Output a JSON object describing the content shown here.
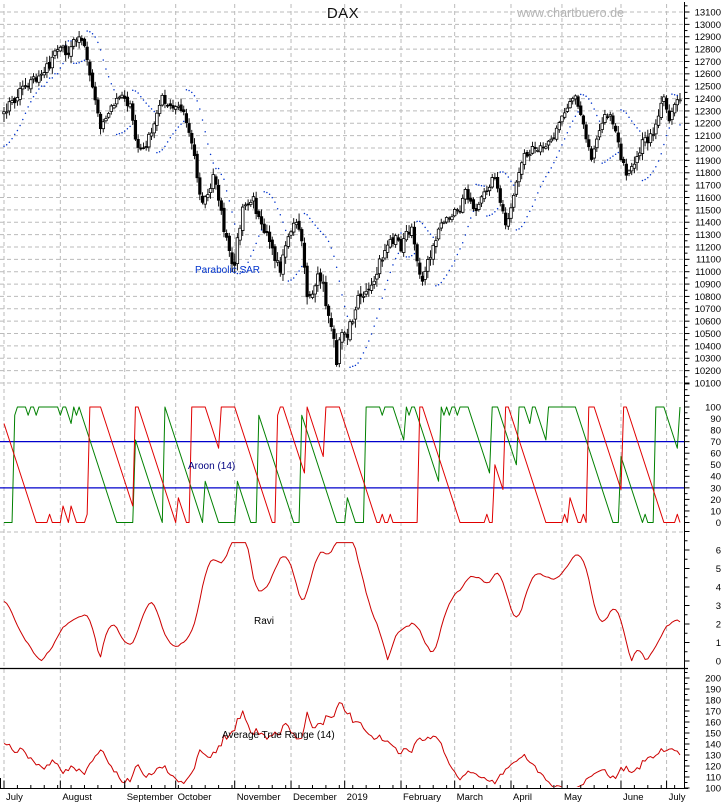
{
  "header": {
    "title": "DAX",
    "watermark": "www.chartbuero.de"
  },
  "chart_data": {
    "type": "candlestick",
    "title": "DAX",
    "legend_position": "none",
    "grid": "on",
    "x_axis": {
      "month_labels": [
        "July",
        "August",
        "September",
        "October",
        "November",
        "December",
        "2019",
        "February",
        "March",
        "April",
        "May",
        "June",
        "July"
      ],
      "month_start_days": [
        0,
        21,
        45,
        64,
        86,
        107,
        127,
        148,
        168,
        189,
        208,
        230,
        247
      ],
      "minor_tick_every_days": 5
    },
    "panels": [
      {
        "name": "price",
        "indicator_label": "Parabolic SAR",
        "y_min": 10100,
        "y_max": 13100,
        "tick_step": 100,
        "minor_step": 50
      },
      {
        "name": "aroon",
        "label": "Aroon (14)",
        "levels": [
          70,
          30
        ],
        "y_min": 0,
        "y_max": 100,
        "tick_step": 10,
        "minor_step": 5
      },
      {
        "name": "ravi",
        "label": "Ravi",
        "y_min": 0,
        "y_max": 6,
        "tick_step": 1,
        "minor_step": 0.5
      },
      {
        "name": "atr",
        "label": "Average True Range (14)",
        "y_min": 100,
        "y_max": 200,
        "tick_step": 10,
        "minor_step": 5
      }
    ],
    "series_params": {
      "days": 253,
      "aroon_period": 14,
      "atr_period": 14,
      "ravi_fast": 7,
      "ravi_slow": 65,
      "sar_step": 0.02,
      "sar_max": 0.2
    },
    "warmup_anchors": [
      [
        -65,
        12620
      ],
      [
        -52,
        12850
      ],
      [
        -45,
        12920
      ],
      [
        -35,
        12700
      ],
      [
        -25,
        12400
      ],
      [
        -15,
        12650
      ],
      [
        -8,
        12300
      ],
      [
        -3,
        12120
      ],
      [
        -1,
        12270
      ]
    ],
    "close_anchors": [
      [
        0,
        12300
      ],
      [
        2,
        12350
      ],
      [
        5,
        12420
      ],
      [
        8,
        12500
      ],
      [
        11,
        12560
      ],
      [
        14,
        12610
      ],
      [
        17,
        12680
      ],
      [
        20,
        12790
      ],
      [
        22,
        12800
      ],
      [
        24,
        12720
      ],
      [
        26,
        12860
      ],
      [
        28,
        12880
      ],
      [
        30,
        12800
      ],
      [
        32,
        12620
      ],
      [
        34,
        12410
      ],
      [
        36,
        12160
      ],
      [
        38,
        12250
      ],
      [
        40,
        12340
      ],
      [
        43,
        12430
      ],
      [
        45,
        12380
      ],
      [
        47,
        12330
      ],
      [
        49,
        12060
      ],
      [
        51,
        11970
      ],
      [
        53,
        12040
      ],
      [
        55,
        12130
      ],
      [
        57,
        12300
      ],
      [
        59,
        12420
      ],
      [
        61,
        12340
      ],
      [
        63,
        12300
      ],
      [
        65,
        12340
      ],
      [
        67,
        12290
      ],
      [
        69,
        12150
      ],
      [
        71,
        11910
      ],
      [
        73,
        11600
      ],
      [
        74,
        11530
      ],
      [
        76,
        11620
      ],
      [
        78,
        11780
      ],
      [
        80,
        11590
      ],
      [
        82,
        11350
      ],
      [
        84,
        11150
      ],
      [
        86,
        11050
      ],
      [
        87,
        11250
      ],
      [
        89,
        11480
      ],
      [
        91,
        11560
      ],
      [
        93,
        11600
      ],
      [
        95,
        11420
      ],
      [
        97,
        11340
      ],
      [
        99,
        11240
      ],
      [
        101,
        11090
      ],
      [
        103,
        11010
      ],
      [
        105,
        11250
      ],
      [
        107,
        11320
      ],
      [
        109,
        11400
      ],
      [
        111,
        11210
      ],
      [
        113,
        10790
      ],
      [
        115,
        10820
      ],
      [
        117,
        10940
      ],
      [
        119,
        10880
      ],
      [
        121,
        10650
      ],
      [
        123,
        10420
      ],
      [
        124,
        10290
      ],
      [
        126,
        10550
      ],
      [
        128,
        10510
      ],
      [
        130,
        10590
      ],
      [
        132,
        10820
      ],
      [
        134,
        10760
      ],
      [
        137,
        10880
      ],
      [
        140,
        11070
      ],
      [
        143,
        11210
      ],
      [
        146,
        11290
      ],
      [
        148,
        11180
      ],
      [
        150,
        11310
      ],
      [
        152,
        11350
      ],
      [
        154,
        11090
      ],
      [
        156,
        10930
      ],
      [
        158,
        11090
      ],
      [
        160,
        11180
      ],
      [
        162,
        11310
      ],
      [
        164,
        11420
      ],
      [
        167,
        11460
      ],
      [
        170,
        11510
      ],
      [
        172,
        11640
      ],
      [
        174,
        11570
      ],
      [
        176,
        11480
      ],
      [
        178,
        11620
      ],
      [
        181,
        11700
      ],
      [
        183,
        11780
      ],
      [
        185,
        11560
      ],
      [
        187,
        11370
      ],
      [
        189,
        11530
      ],
      [
        191,
        11700
      ],
      [
        193,
        11900
      ],
      [
        195,
        11960
      ],
      [
        197,
        11990
      ],
      [
        200,
        12010
      ],
      [
        203,
        12030
      ],
      [
        206,
        12150
      ],
      [
        209,
        12290
      ],
      [
        211,
        12400
      ],
      [
        213,
        12430
      ],
      [
        215,
        12250
      ],
      [
        217,
        12080
      ],
      [
        219,
        11940
      ],
      [
        221,
        12040
      ],
      [
        224,
        12260
      ],
      [
        226,
        12290
      ],
      [
        228,
        12110
      ],
      [
        230,
        11930
      ],
      [
        232,
        11790
      ],
      [
        234,
        11820
      ],
      [
        236,
        11940
      ],
      [
        238,
        12030
      ],
      [
        240,
        12080
      ],
      [
        242,
        12140
      ],
      [
        244,
        12280
      ],
      [
        246,
        12400
      ],
      [
        247,
        12310
      ],
      [
        248,
        12250
      ],
      [
        249,
        12300
      ],
      [
        250,
        12340
      ],
      [
        251,
        12390
      ],
      [
        252,
        12420
      ]
    ],
    "volatility_anchors": [
      [
        -65,
        210
      ],
      [
        -20,
        200
      ],
      [
        0,
        205
      ],
      [
        10,
        175
      ],
      [
        21,
        160
      ],
      [
        31,
        172
      ],
      [
        43,
        140
      ],
      [
        55,
        132
      ],
      [
        60,
        126
      ],
      [
        65,
        145
      ],
      [
        77,
        165
      ],
      [
        84,
        196
      ],
      [
        92,
        195
      ],
      [
        100,
        198
      ],
      [
        107,
        175
      ],
      [
        114,
        192
      ],
      [
        121,
        205
      ],
      [
        128,
        215
      ],
      [
        136,
        185
      ],
      [
        142,
        168
      ],
      [
        151,
        160
      ],
      [
        158,
        175
      ],
      [
        166,
        142
      ],
      [
        174,
        130
      ],
      [
        182,
        145
      ],
      [
        190,
        144
      ],
      [
        196,
        132
      ],
      [
        208,
        115
      ],
      [
        217,
        148
      ],
      [
        226,
        176
      ],
      [
        233,
        180
      ],
      [
        241,
        176
      ],
      [
        246,
        162
      ],
      [
        252,
        160
      ]
    ],
    "colors": {
      "candle": "#000000",
      "sar": "#0033cc",
      "aroon_up": "#008000",
      "aroon_down": "#e00000",
      "aroon_levels": "#0000cc",
      "line_red": "#cc0000",
      "grid": "#bbbbbb",
      "axis": "#000000",
      "watermark": "#b4b4b4",
      "label_navy": "#000080",
      "label_blue": "#0033cc"
    }
  }
}
